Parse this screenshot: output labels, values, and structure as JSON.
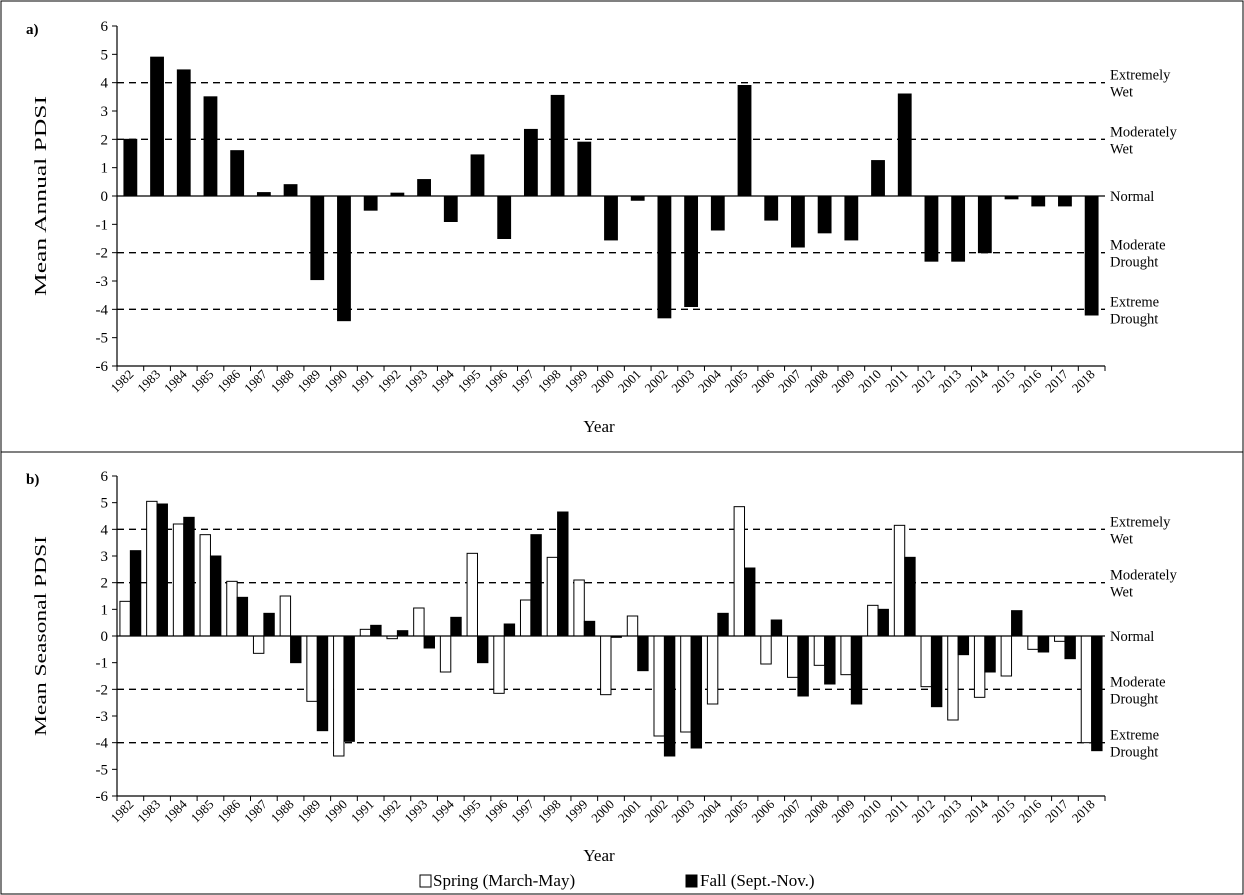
{
  "chart_data": [
    {
      "type": "bar",
      "panel": "a)",
      "xlabel": "Year",
      "ylabel": "Mean Annual PDSI",
      "ylim": [
        -6,
        6
      ],
      "yticks": [
        "6",
        "5",
        "4",
        "3",
        "2",
        "1",
        "0",
        "-1",
        "-2",
        "-3",
        "-4",
        "-5",
        "-6"
      ],
      "categories": [
        "1982",
        "1983",
        "1984",
        "1985",
        "1986",
        "1987",
        "1988",
        "1989",
        "1990",
        "1991",
        "1992",
        "1993",
        "1994",
        "1995",
        "1996",
        "1997",
        "1998",
        "1999",
        "2000",
        "2001",
        "2002",
        "2003",
        "2004",
        "2005",
        "2006",
        "2007",
        "2008",
        "2009",
        "2010",
        "2011",
        "2012",
        "2013",
        "2014",
        "2015",
        "2016",
        "2017",
        "2018"
      ],
      "series": [
        {
          "color": "#000000",
          "values": [
            2.0,
            4.9,
            4.45,
            3.5,
            1.6,
            0.12,
            0.4,
            -2.95,
            -4.4,
            -0.5,
            0.1,
            0.58,
            -0.9,
            1.45,
            -1.5,
            2.35,
            3.55,
            1.9,
            -1.55,
            -0.15,
            -4.3,
            -3.9,
            -1.2,
            3.9,
            -0.85,
            -1.8,
            -1.3,
            -1.55,
            1.25,
            3.6,
            -2.3,
            -2.3,
            -2.0,
            -0.1,
            -0.35,
            -0.35,
            -4.2
          ]
        }
      ],
      "thresholds": [
        {
          "value": 4,
          "label_lines": [
            "Extremely",
            "Wet"
          ],
          "dashed": true
        },
        {
          "value": 2,
          "label_lines": [
            "Moderately",
            "Wet"
          ],
          "dashed": true
        },
        {
          "value": 0,
          "label_lines": [
            "Normal"
          ],
          "dashed": false
        },
        {
          "value": -2,
          "label_lines": [
            "Moderate",
            "Drought"
          ],
          "dashed": true
        },
        {
          "value": -4,
          "label_lines": [
            "Extreme",
            "Drought"
          ],
          "dashed": true
        }
      ]
    },
    {
      "type": "bar",
      "panel": "b)",
      "xlabel": "Year",
      "ylabel": "Mean Seasonal PDSI",
      "ylim": [
        -6,
        6
      ],
      "yticks": [
        "6",
        "5",
        "4",
        "3",
        "2",
        "1",
        "0",
        "-1",
        "-2",
        "-3",
        "-4",
        "-5",
        "-6"
      ],
      "categories": [
        "1982",
        "1983",
        "1984",
        "1985",
        "1986",
        "1987",
        "1988",
        "1989",
        "1990",
        "1991",
        "1992",
        "1993",
        "1994",
        "1995",
        "1996",
        "1997",
        "1998",
        "1999",
        "2000",
        "2001",
        "2002",
        "2003",
        "2004",
        "2005",
        "2006",
        "2007",
        "2008",
        "2009",
        "2010",
        "2011",
        "2012",
        "2013",
        "2014",
        "2015",
        "2016",
        "2017",
        "2018"
      ],
      "series": [
        {
          "name": "Spring (March-May)",
          "color": "#ffffff",
          "values": [
            1.3,
            5.05,
            4.2,
            3.8,
            2.05,
            -0.65,
            1.5,
            -2.45,
            -4.5,
            0.25,
            -0.1,
            1.05,
            -1.35,
            3.1,
            -2.15,
            1.35,
            2.95,
            2.1,
            -2.2,
            0.75,
            -3.75,
            -3.6,
            -2.55,
            4.85,
            -1.05,
            -1.55,
            -1.1,
            -1.45,
            1.15,
            4.15,
            -1.9,
            -3.15,
            -2.3,
            -1.5,
            -0.5,
            -0.2,
            -4.0
          ]
        },
        {
          "name": "Fall (Sept.-Nov.)",
          "color": "#000000",
          "values": [
            3.2,
            4.95,
            4.45,
            3.0,
            1.45,
            0.85,
            -1.0,
            -3.55,
            -3.95,
            0.4,
            0.2,
            -0.45,
            0.7,
            -1.0,
            0.45,
            3.8,
            4.65,
            0.55,
            -0.05,
            -1.3,
            -4.5,
            -4.2,
            0.85,
            2.55,
            0.6,
            -2.25,
            -1.8,
            -2.55,
            1.0,
            2.95,
            -2.65,
            -0.7,
            -1.35,
            0.95,
            -0.6,
            -0.85,
            -4.3
          ]
        }
      ],
      "thresholds": [
        {
          "value": 4,
          "label_lines": [
            "Extremely",
            "Wet"
          ],
          "dashed": true
        },
        {
          "value": 2,
          "label_lines": [
            "Moderately",
            "Wet"
          ],
          "dashed": true
        },
        {
          "value": 0,
          "label_lines": [
            "Normal"
          ],
          "dashed": false
        },
        {
          "value": -2,
          "label_lines": [
            "Moderate",
            "Drought"
          ],
          "dashed": true
        },
        {
          "value": -4,
          "label_lines": [
            "Extreme",
            "Drought"
          ],
          "dashed": true
        }
      ]
    }
  ],
  "legend": [
    {
      "label": "Spring (March-May)",
      "color": "#ffffff"
    },
    {
      "label": "Fall (Sept.-Nov.)",
      "color": "#000000"
    }
  ]
}
